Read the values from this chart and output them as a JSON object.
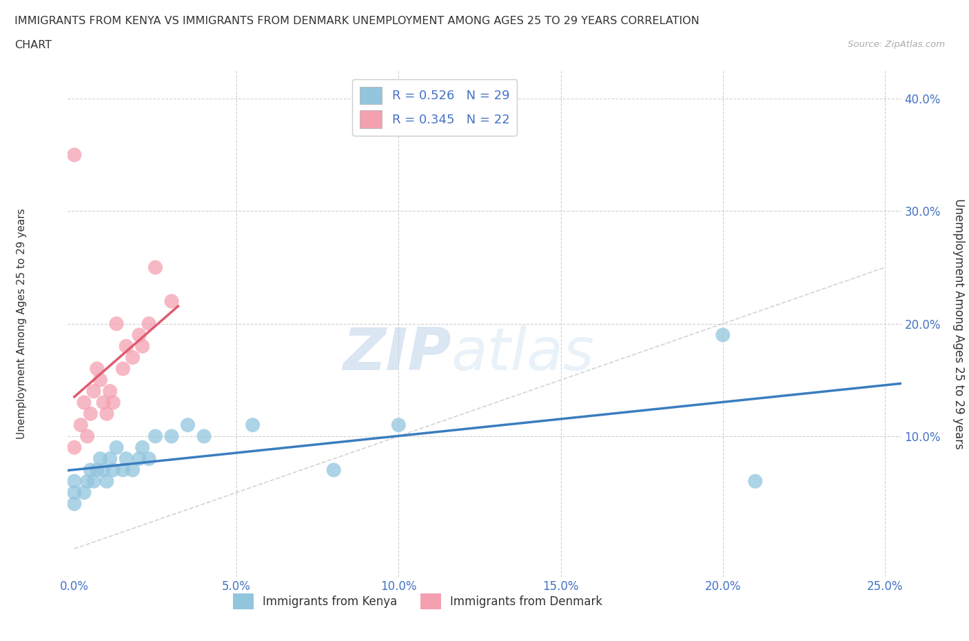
{
  "title_line1": "IMMIGRANTS FROM KENYA VS IMMIGRANTS FROM DENMARK UNEMPLOYMENT AMONG AGES 25 TO 29 YEARS CORRELATION",
  "title_line2": "CHART",
  "source": "Source: ZipAtlas.com",
  "ylabel": "Unemployment Among Ages 25 to 29 years",
  "xlim": [
    -0.002,
    0.255
  ],
  "ylim": [
    -0.025,
    0.425
  ],
  "xticks": [
    0.0,
    0.05,
    0.1,
    0.15,
    0.2,
    0.25
  ],
  "xticklabels": [
    "0.0%",
    "5.0%",
    "10.0%",
    "15.0%",
    "20.0%",
    "25.0%"
  ],
  "yticks": [
    0.0,
    0.1,
    0.2,
    0.3,
    0.4
  ],
  "yticklabels": [
    "",
    "10.0%",
    "20.0%",
    "30.0%",
    "40.0%"
  ],
  "kenya_color": "#92c5de",
  "denmark_color": "#f4a0b0",
  "kenya_line_color": "#3a7dbf",
  "denmark_line_color": "#e05a6e",
  "diag_line_color": "#c8c8c8",
  "R_kenya": 0.526,
  "N_kenya": 29,
  "R_denmark": 0.345,
  "N_denmark": 22,
  "legend_kenya": "Immigrants from Kenya",
  "legend_denmark": "Immigrants from Denmark",
  "kenya_x": [
    0.0,
    0.0,
    0.0,
    0.003,
    0.004,
    0.005,
    0.006,
    0.007,
    0.008,
    0.009,
    0.01,
    0.011,
    0.012,
    0.013,
    0.015,
    0.016,
    0.018,
    0.02,
    0.021,
    0.023,
    0.025,
    0.03,
    0.035,
    0.04,
    0.055,
    0.08,
    0.1,
    0.2,
    0.21
  ],
  "kenya_y": [
    0.04,
    0.05,
    0.06,
    0.05,
    0.06,
    0.07,
    0.06,
    0.07,
    0.08,
    0.07,
    0.06,
    0.08,
    0.07,
    0.09,
    0.07,
    0.08,
    0.07,
    0.08,
    0.09,
    0.08,
    0.1,
    0.1,
    0.11,
    0.1,
    0.11,
    0.07,
    0.11,
    0.19,
    0.06
  ],
  "denmark_x": [
    0.0,
    0.0,
    0.002,
    0.003,
    0.004,
    0.005,
    0.006,
    0.007,
    0.008,
    0.009,
    0.01,
    0.011,
    0.012,
    0.013,
    0.015,
    0.016,
    0.018,
    0.02,
    0.021,
    0.023,
    0.025,
    0.03
  ],
  "denmark_y": [
    0.09,
    0.35,
    0.11,
    0.13,
    0.1,
    0.12,
    0.14,
    0.16,
    0.15,
    0.13,
    0.12,
    0.14,
    0.13,
    0.2,
    0.16,
    0.18,
    0.17,
    0.19,
    0.18,
    0.2,
    0.25,
    0.22
  ],
  "bg_color": "#ffffff",
  "title_color": "#333333",
  "tick_color": "#4472c4",
  "grid_color": "#d0d0d0",
  "watermark_color": "#c8ddf0"
}
